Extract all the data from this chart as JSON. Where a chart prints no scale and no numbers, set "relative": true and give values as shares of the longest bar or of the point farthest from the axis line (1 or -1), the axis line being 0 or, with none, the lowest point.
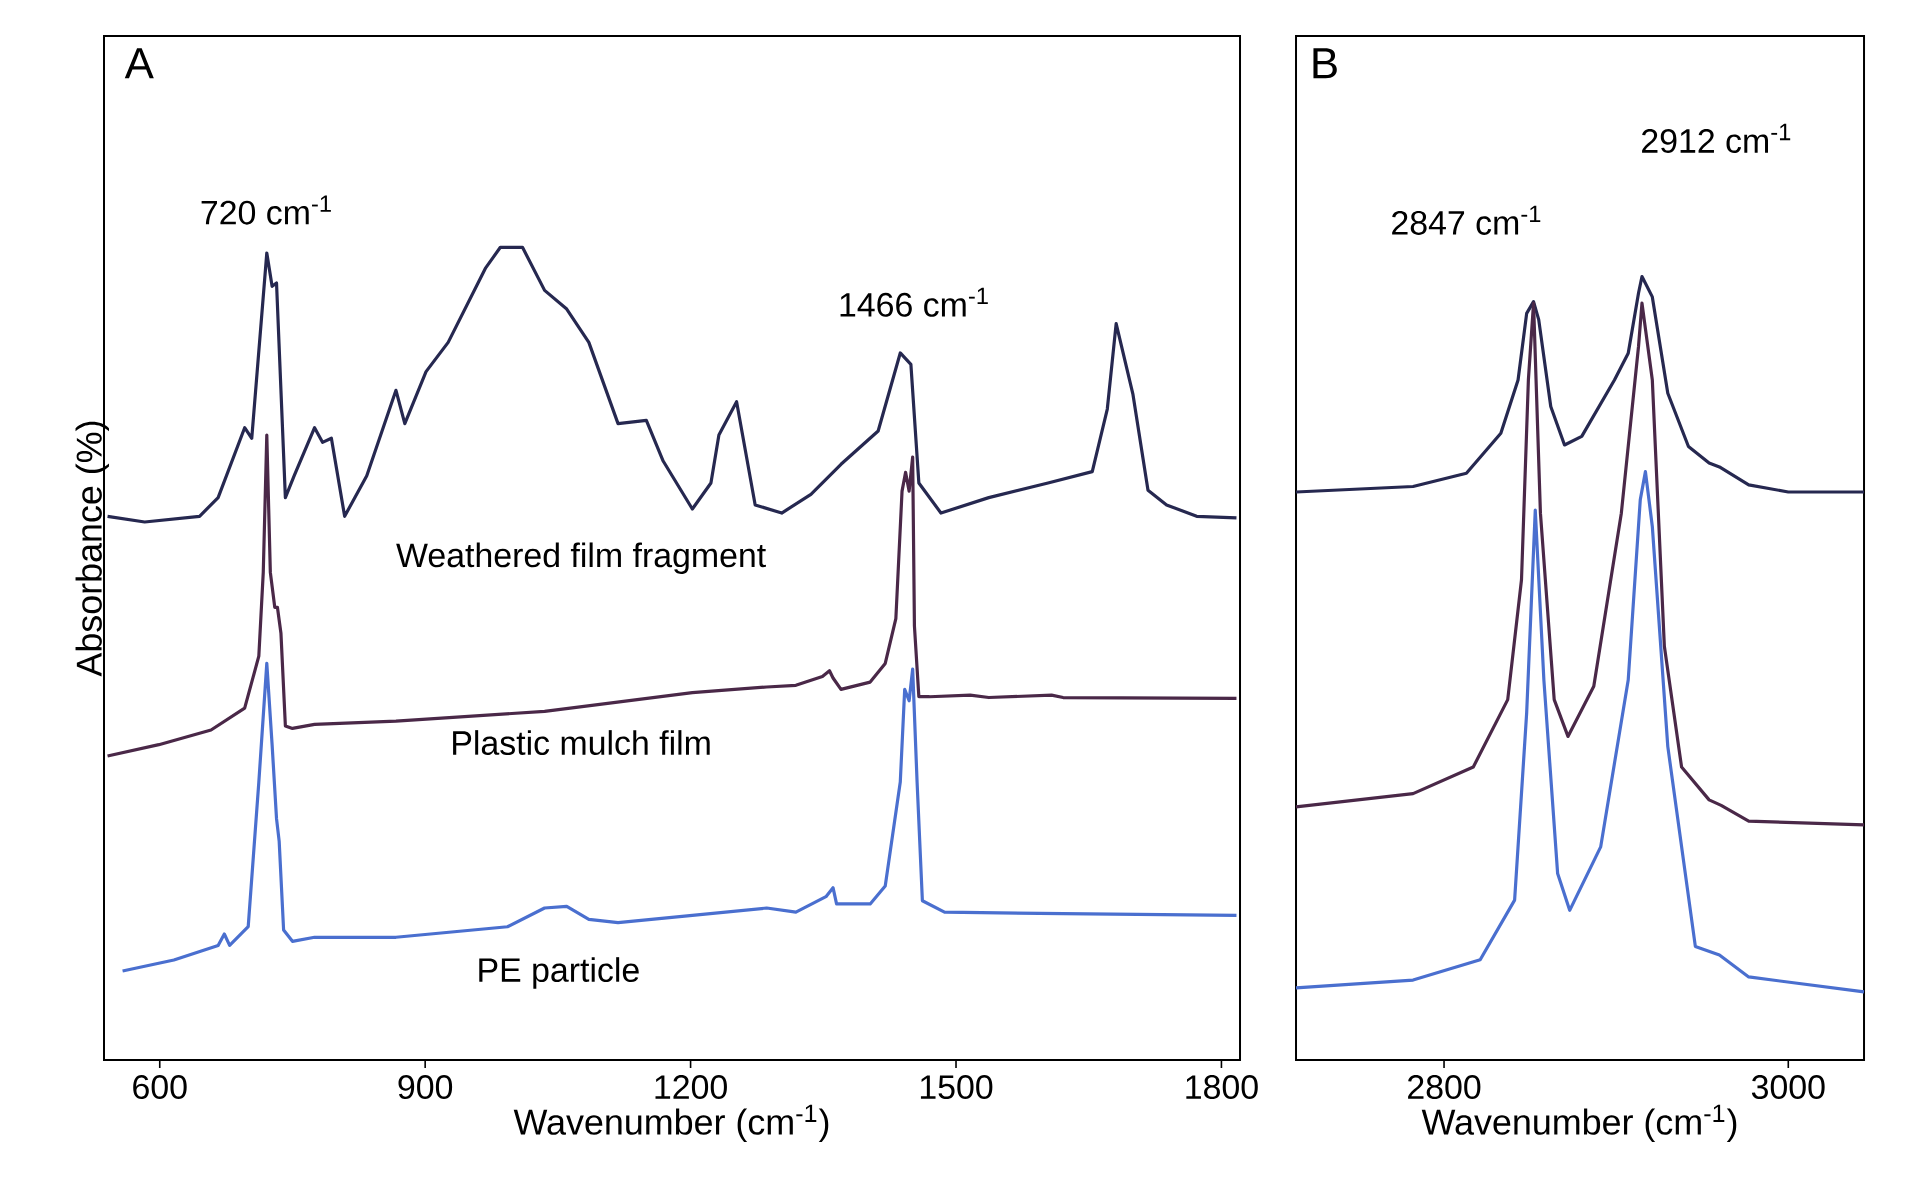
{
  "chart_data": [
    {
      "type": "line",
      "relative": true,
      "title": "A",
      "xlabel": "Wavenumber (cm$^{-1}$)",
      "ylabel": "Absorbance (%)",
      "xlim": [
        537,
        1821
      ],
      "xticks": [
        600,
        900,
        1200,
        1500,
        1800
      ],
      "annotations": [
        "720 cm$^{-1}$",
        "1466 cm$^{-1}$"
      ],
      "series": [
        {
          "name": "Weathered film fragment",
          "color": "#262850",
          "x": [
            541,
            583,
            645,
            666,
            696,
            704,
            721,
            727,
            732,
            742,
            752,
            775,
            784,
            794,
            809,
            834,
            867,
            877,
            901,
            926,
            968,
            985,
            1010,
            1035,
            1060,
            1085,
            1118,
            1150,
            1169,
            1202,
            1223,
            1232,
            1252,
            1273,
            1303,
            1336,
            1370,
            1412,
            1437,
            1449,
            1458,
            1483,
            1537,
            1604,
            1654,
            1671,
            1681,
            1700,
            1717,
            1738,
            1772,
            1817
          ],
          "values": [
            0.669,
            0.662,
            0.669,
            0.692,
            0.778,
            0.765,
            0.993,
            0.952,
            0.956,
            0.692,
            0.719,
            0.778,
            0.76,
            0.765,
            0.669,
            0.719,
            0.824,
            0.783,
            0.847,
            0.883,
            0.974,
            1.0,
            1.0,
            0.947,
            0.924,
            0.883,
            0.783,
            0.787,
            0.737,
            0.678,
            0.71,
            0.769,
            0.81,
            0.683,
            0.673,
            0.696,
            0.733,
            0.774,
            0.87,
            0.856,
            0.71,
            0.673,
            0.692,
            0.71,
            0.724,
            0.801,
            0.906,
            0.819,
            0.701,
            0.683,
            0.669,
            0.667
          ]
        },
        {
          "name": "Plastic mulch film",
          "color": "#4a2848",
          "x": [
            541,
            599,
            658,
            696,
            712,
            717,
            721,
            725,
            730,
            733,
            737,
            742,
            750,
            775,
            867,
            1035,
            1202,
            1286,
            1319,
            1349,
            1357,
            1361,
            1370,
            1403,
            1420,
            1432,
            1439,
            1443,
            1447,
            1451,
            1453,
            1458,
            1470,
            1516,
            1537,
            1608,
            1621,
            1817
          ],
          "values": [
            0.374,
            0.388,
            0.406,
            0.433,
            0.497,
            0.6,
            0.769,
            0.6,
            0.557,
            0.557,
            0.525,
            0.411,
            0.408,
            0.413,
            0.417,
            0.429,
            0.452,
            0.459,
            0.461,
            0.472,
            0.479,
            0.47,
            0.456,
            0.465,
            0.488,
            0.543,
            0.7,
            0.723,
            0.7,
            0.742,
            0.534,
            0.447,
            0.447,
            0.449,
            0.446,
            0.449,
            0.446,
            0.445
          ]
        },
        {
          "name": "PE particle",
          "color": "#4a6fcf",
          "x": [
            558,
            616,
            666,
            673,
            679,
            700,
            712,
            721,
            727,
            732,
            735,
            740,
            750,
            775,
            867,
            993,
            1035,
            1060,
            1085,
            1118,
            1202,
            1286,
            1319,
            1353,
            1361,
            1365,
            1403,
            1420,
            1437,
            1442,
            1447,
            1451,
            1456,
            1462,
            1487,
            1621,
            1817
          ],
          "values": [
            0.1095,
            0.123,
            0.141,
            0.155,
            0.141,
            0.164,
            0.342,
            0.488,
            0.388,
            0.297,
            0.269,
            0.16,
            0.146,
            0.151,
            0.151,
            0.164,
            0.187,
            0.189,
            0.173,
            0.169,
            0.178,
            0.187,
            0.182,
            0.201,
            0.212,
            0.192,
            0.192,
            0.214,
            0.342,
            0.456,
            0.442,
            0.481,
            0.342,
            0.196,
            0.182,
            0.18,
            0.178
          ]
        }
      ]
    },
    {
      "type": "line",
      "relative": true,
      "title": "B",
      "xlabel": "Wavenumber (cm$^{-1}$)",
      "xlim": [
        2714,
        3044
      ],
      "xticks": [
        2800,
        3000
      ],
      "annotations": [
        "2847 cm$^{-1}$",
        "2912 cm$^{-1}$"
      ],
      "series": [
        {
          "color": "#262850",
          "x": [
            2714,
            2782,
            2813,
            2833,
            2843,
            2848,
            2852,
            2855,
            2862,
            2870,
            2880,
            2899,
            2907,
            2913,
            2915,
            2921,
            2930,
            2942,
            2954,
            2960,
            2977,
            3000,
            3044
          ],
          "values": [
            0.725,
            0.732,
            0.749,
            0.8,
            0.868,
            0.953,
            0.968,
            0.945,
            0.834,
            0.785,
            0.796,
            0.868,
            0.902,
            0.979,
            1.0,
            0.974,
            0.851,
            0.783,
            0.762,
            0.757,
            0.734,
            0.725,
            0.725
          ]
        },
        {
          "color": "#4a2848",
          "x": [
            2714,
            2782,
            2817,
            2837,
            2845,
            2849,
            2852,
            2856,
            2864,
            2872,
            2887,
            2903,
            2913,
            2915,
            2921,
            2928,
            2938,
            2954,
            2961,
            2977,
            3044
          ],
          "values": [
            0.323,
            0.34,
            0.374,
            0.46,
            0.613,
            0.868,
            0.966,
            0.698,
            0.46,
            0.413,
            0.477,
            0.698,
            0.911,
            0.966,
            0.868,
            0.528,
            0.374,
            0.332,
            0.325,
            0.305,
            0.3
          ]
        },
        {
          "color": "#4a6fcf",
          "x": [
            2714,
            2782,
            2821,
            2841,
            2848,
            2853,
            2858,
            2866,
            2873,
            2891,
            2907,
            2914,
            2917,
            2921,
            2930,
            2946,
            2960,
            2977,
            3044
          ],
          "values": [
            0.092,
            0.102,
            0.128,
            0.204,
            0.443,
            0.702,
            0.485,
            0.238,
            0.191,
            0.272,
            0.485,
            0.715,
            0.751,
            0.681,
            0.4,
            0.145,
            0.134,
            0.106,
            0.087
          ]
        }
      ]
    }
  ]
}
